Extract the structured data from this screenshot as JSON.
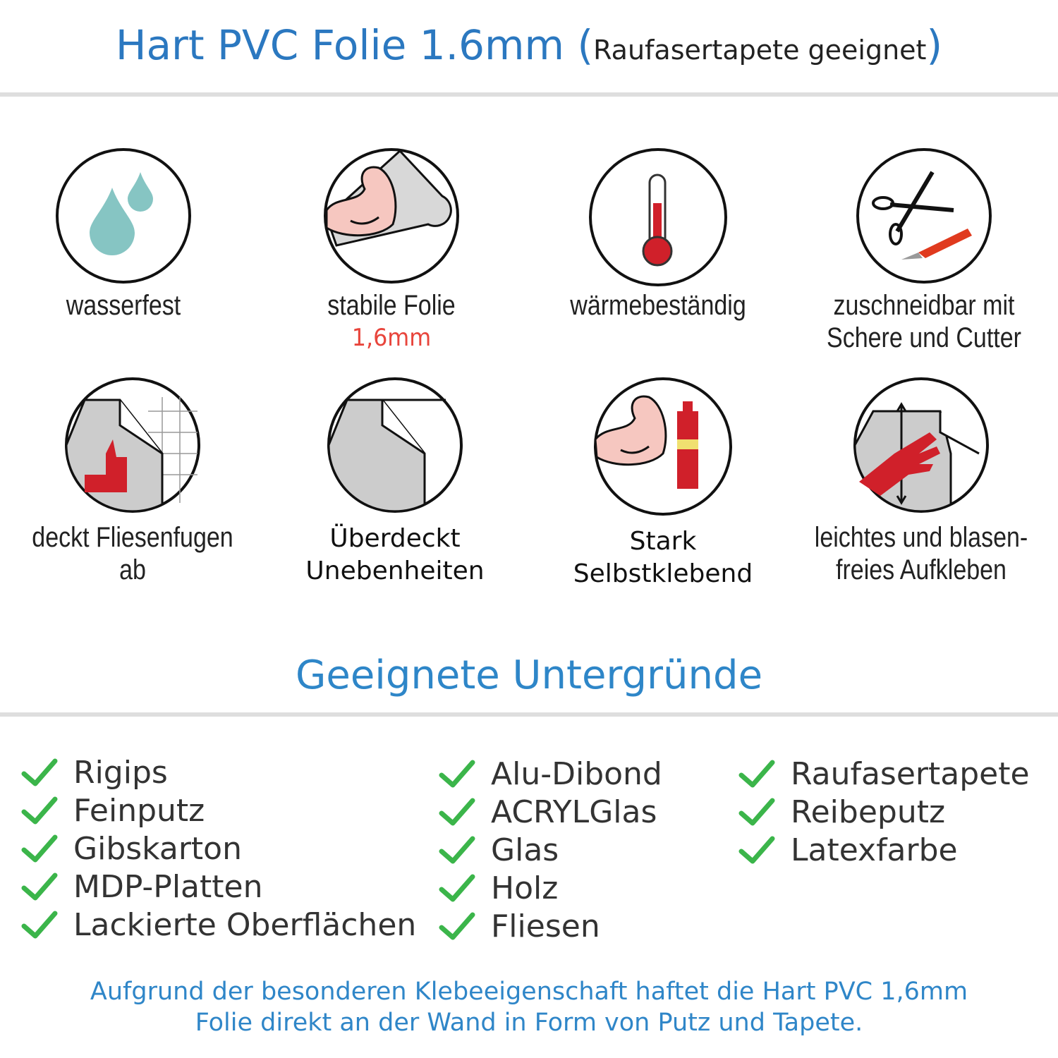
{
  "header": {
    "title": "Hart PVC Folie 1.6mm",
    "open_paren": "(",
    "subtitle": "Raufasertapete geeignet",
    "close_paren": ")"
  },
  "features": [
    {
      "icon": "water-drops-icon",
      "label": "wasserfest"
    },
    {
      "icon": "muscle-roll-icon",
      "label": "stabile Folie",
      "sublabel": "1,6mm"
    },
    {
      "icon": "thermometer-icon",
      "label": "wärmebeständig"
    },
    {
      "icon": "scissors-cutter-icon",
      "label_lines": [
        "zuschneidbar mit",
        "Schere und Cutter"
      ]
    },
    {
      "icon": "tile-thumbs-up-icon",
      "label": "deckt Fliesenfugen ab"
    },
    {
      "icon": "sheet-peel-icon",
      "label_lines": [
        "Überdeckt",
        "Unebenheiten"
      ]
    },
    {
      "icon": "muscle-glue-icon",
      "label_lines": [
        "Stark",
        "Selbstklebend"
      ]
    },
    {
      "icon": "hand-smooth-icon",
      "label_lines": [
        "leichtes und blasen-",
        "freies Aufkleben"
      ]
    }
  ],
  "surfaces": {
    "title": "Geeignete Untergründe",
    "columns": [
      [
        "Rigips",
        "Feinputz",
        "Gibskarton",
        "MDP-Platten",
        "Lackierte Oberflächen"
      ],
      [
        "Alu-Dibond",
        "ACRYLGlas",
        "Glas",
        "Holz",
        "Fliesen"
      ],
      [
        "Raufasertapete",
        "Reibeputz",
        "Latexfarbe"
      ]
    ]
  },
  "footer": {
    "lines": [
      "Aufgrund der besonderen Klebeeigenschaft haftet die Hart PVC 1,6mm",
      "Folie direkt an der Wand in Form von Putz und Tapete."
    ]
  },
  "colors": {
    "title_blue": "#2b78c0",
    "check_green": "#3bb54a",
    "accent_red": "#e8453c",
    "rule_gray": "#dedede"
  }
}
